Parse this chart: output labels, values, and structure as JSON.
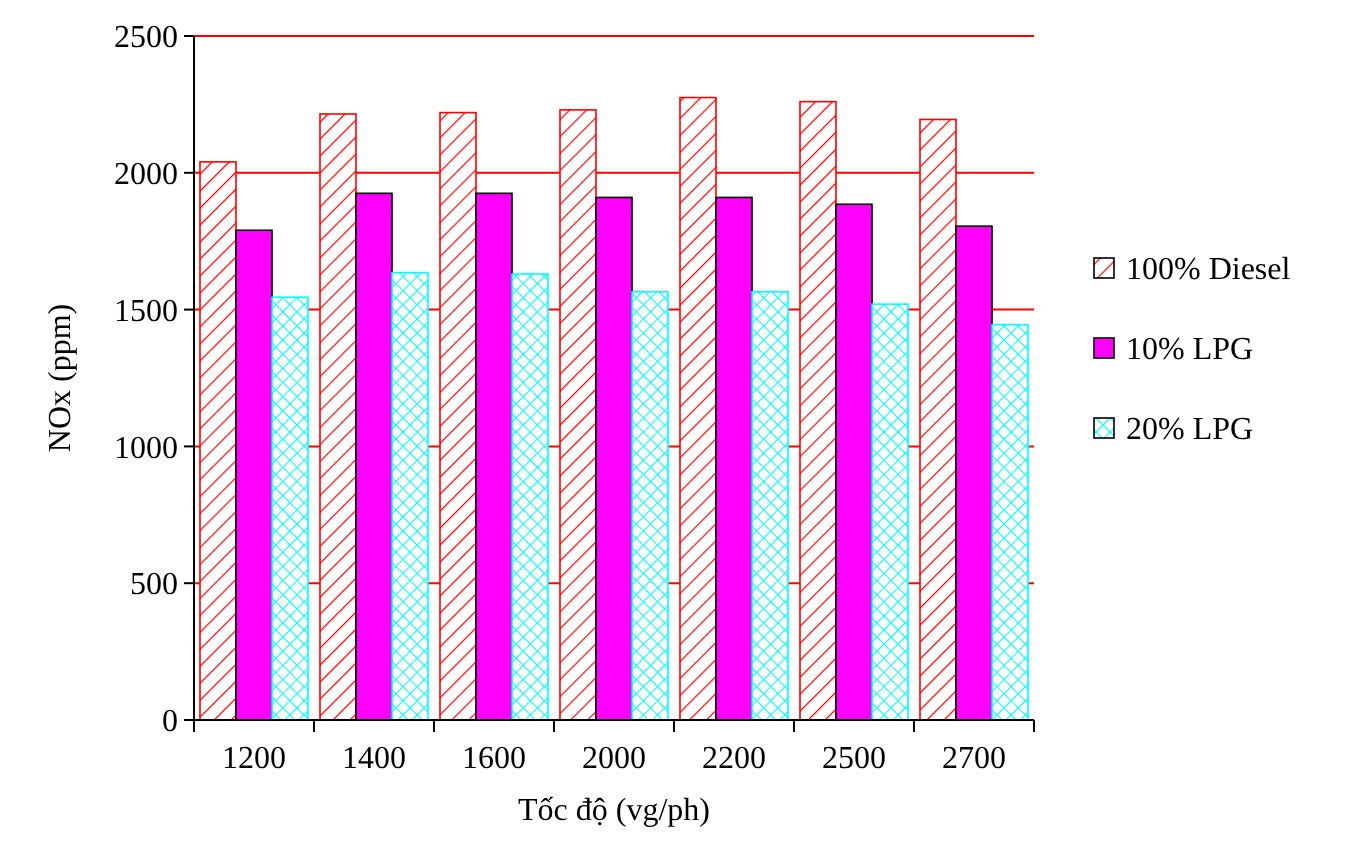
{
  "chart_data": {
    "type": "bar",
    "xlabel": "Tốc độ (vg/ph)",
    "ylabel": "NOx (ppm)",
    "categories": [
      "1200",
      "1400",
      "1600",
      "2000",
      "2200",
      "2500",
      "2700"
    ],
    "series": [
      {
        "name": "100% Diesel",
        "color": "#ff0000",
        "values": [
          2040,
          2215,
          2220,
          2230,
          2275,
          2260,
          2195
        ]
      },
      {
        "name": "10% LPG",
        "color": "#ff00ff",
        "values": [
          1790,
          1925,
          1925,
          1910,
          1910,
          1885,
          1805
        ]
      },
      {
        "name": "20% LPG",
        "color": "#00ffff",
        "values": [
          1545,
          1635,
          1630,
          1565,
          1565,
          1520,
          1445
        ]
      }
    ],
    "ylim": [
      0,
      2500
    ],
    "yticks": [
      0,
      500,
      1000,
      1500,
      2000,
      2500
    ],
    "grid": "y",
    "legend": "right"
  }
}
